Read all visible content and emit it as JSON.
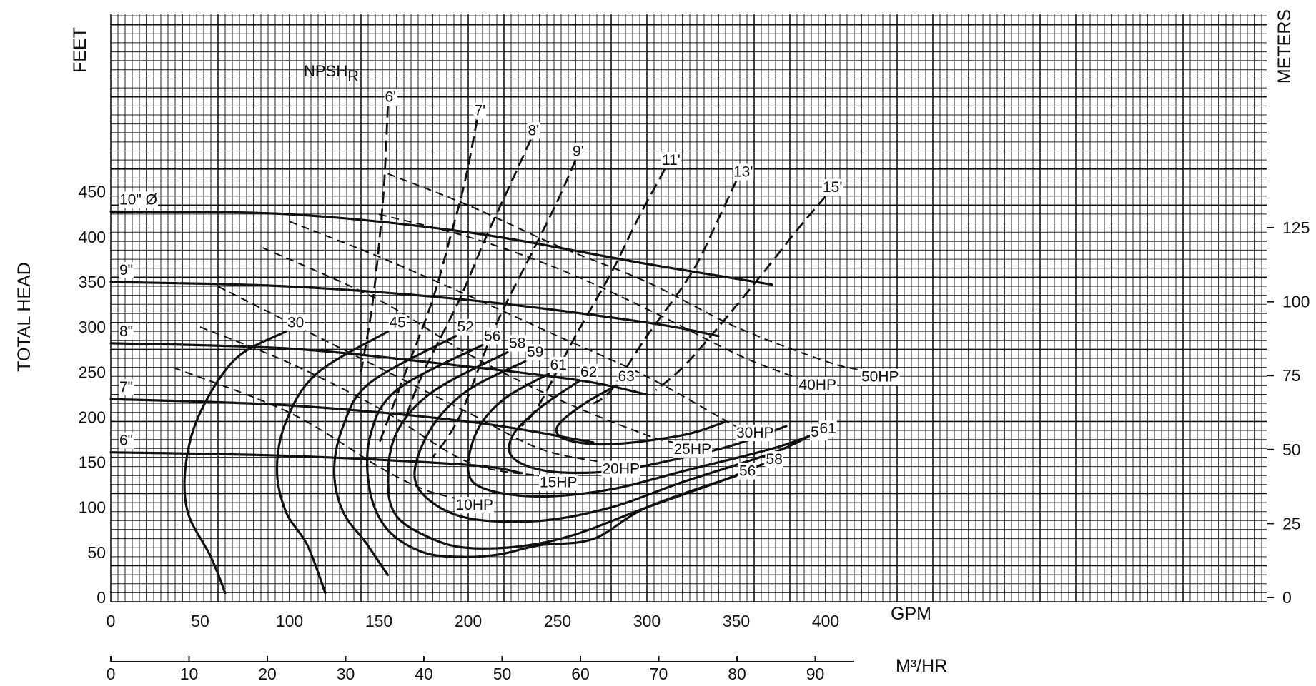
{
  "chart_data": {
    "type": "line",
    "title": "",
    "xlabel": "GPM",
    "x2label": "M³/HR",
    "ylabel": "TOTAL HEAD",
    "y_left_unit": "FEET",
    "y_right_unit": "METERS",
    "xlim": [
      0,
      640
    ],
    "ylim": [
      -5,
      650
    ],
    "x_ticks": [
      0,
      50,
      100,
      150,
      200,
      250,
      300,
      350,
      400
    ],
    "x2_ticks": [
      0,
      10,
      20,
      30,
      40,
      50,
      60,
      70,
      80,
      90
    ],
    "y_ticks": [
      0,
      50,
      100,
      150,
      200,
      250,
      300,
      350,
      400,
      450
    ],
    "y2_ticks": [
      0,
      25,
      50,
      75,
      100,
      125
    ],
    "grid": true,
    "npsh_label": "NPSH",
    "npsh_subscript": "R",
    "impeller_curves": [
      {
        "name": "10\" Ø",
        "points": [
          [
            0,
            428
          ],
          [
            100,
            425
          ],
          [
            200,
            405
          ],
          [
            300,
            370
          ],
          [
            370,
            347
          ]
        ]
      },
      {
        "name": "9\"",
        "points": [
          [
            0,
            350
          ],
          [
            100,
            345
          ],
          [
            200,
            330
          ],
          [
            300,
            305
          ],
          [
            340,
            290
          ]
        ]
      },
      {
        "name": "8\"",
        "points": [
          [
            0,
            282
          ],
          [
            100,
            276
          ],
          [
            200,
            256
          ],
          [
            265,
            240
          ],
          [
            300,
            225
          ]
        ]
      },
      {
        "name": "7\"",
        "points": [
          [
            0,
            220
          ],
          [
            100,
            213
          ],
          [
            200,
            195
          ],
          [
            270,
            172
          ]
        ]
      },
      {
        "name": "6\"",
        "points": [
          [
            0,
            161
          ],
          [
            100,
            157
          ],
          [
            200,
            147
          ],
          [
            230,
            138
          ]
        ]
      }
    ],
    "efficiency_curves": [
      {
        "name": "30",
        "points": [
          [
            98,
            295
          ],
          [
            70,
            265
          ],
          [
            50,
            205
          ],
          [
            42,
            148
          ],
          [
            43,
            95
          ],
          [
            56,
            45
          ],
          [
            64,
            5
          ]
        ]
      },
      {
        "name": "45",
        "points": [
          [
            155,
            295
          ],
          [
            115,
            248
          ],
          [
            98,
            195
          ],
          [
            93,
            142
          ],
          [
            98,
            95
          ],
          [
            110,
            58
          ],
          [
            120,
            5
          ]
        ]
      },
      {
        "name": "52",
        "points": [
          [
            193,
            290
          ],
          [
            145,
            238
          ],
          [
            130,
            190
          ],
          [
            125,
            140
          ],
          [
            130,
            95
          ],
          [
            143,
            60
          ],
          [
            155,
            25
          ]
        ]
      },
      {
        "name": "56",
        "points": [
          [
            208,
            280
          ],
          [
            160,
            230
          ],
          [
            145,
            178
          ],
          [
            145,
            118
          ],
          [
            155,
            75
          ],
          [
            175,
            50
          ],
          [
            198,
            45
          ],
          [
            218,
            48
          ],
          [
            240,
            58
          ],
          [
            270,
            65
          ],
          [
            300,
            100
          ],
          [
            350,
            135
          ]
        ]
      },
      {
        "name": "58",
        "points": [
          [
            222,
            272
          ],
          [
            180,
            228
          ],
          [
            160,
            183
          ],
          [
            155,
            130
          ],
          [
            160,
            90
          ],
          [
            180,
            65
          ],
          [
            200,
            55
          ],
          [
            230,
            57
          ],
          [
            260,
            70
          ],
          [
            300,
            100
          ],
          [
            340,
            128
          ],
          [
            365,
            148
          ]
        ]
      },
      {
        "name": "59",
        "points": [
          [
            232,
            262
          ],
          [
            200,
            230
          ],
          [
            180,
            190
          ],
          [
            170,
            140
          ],
          [
            177,
            110
          ],
          [
            200,
            88
          ],
          [
            240,
            85
          ],
          [
            280,
            100
          ],
          [
            320,
            128
          ],
          [
            370,
            160
          ],
          [
            390,
            178
          ]
        ]
      },
      {
        "name": "61",
        "points": [
          [
            245,
            248
          ],
          [
            220,
            220
          ],
          [
            205,
            185
          ],
          [
            200,
            140
          ],
          [
            210,
            120
          ],
          [
            240,
            112
          ],
          [
            280,
            120
          ],
          [
            320,
            140
          ],
          [
            370,
            165
          ],
          [
            395,
            182
          ]
        ]
      },
      {
        "name": "62",
        "points": [
          [
            262,
            240
          ],
          [
            240,
            210
          ],
          [
            225,
            180
          ],
          [
            225,
            155
          ],
          [
            245,
            140
          ],
          [
            280,
            140
          ],
          [
            320,
            155
          ],
          [
            350,
            170
          ],
          [
            378,
            190
          ]
        ]
      },
      {
        "name": "63",
        "points": [
          [
            283,
            235
          ],
          [
            265,
            215
          ],
          [
            250,
            190
          ],
          [
            255,
            175
          ],
          [
            280,
            170
          ],
          [
            320,
            180
          ],
          [
            344,
            195
          ]
        ]
      }
    ],
    "power_curves": [
      {
        "name": "10HP",
        "points": [
          [
            35,
            255
          ],
          [
            100,
            205
          ],
          [
            150,
            145
          ],
          [
            175,
            120
          ],
          [
            193,
            110
          ]
        ]
      },
      {
        "name": "15HP",
        "points": [
          [
            50,
            300
          ],
          [
            100,
            260
          ],
          [
            150,
            210
          ],
          [
            200,
            150
          ],
          [
            240,
            135
          ]
        ]
      },
      {
        "name": "20HP",
        "points": [
          [
            60,
            345
          ],
          [
            100,
            305
          ],
          [
            150,
            255
          ],
          [
            200,
            205
          ],
          [
            240,
            165
          ],
          [
            275,
            150
          ]
        ]
      },
      {
        "name": "25HP",
        "points": [
          [
            85,
            388
          ],
          [
            150,
            330
          ],
          [
            200,
            270
          ],
          [
            250,
            220
          ],
          [
            300,
            180
          ],
          [
            315,
            172
          ]
        ]
      },
      {
        "name": "30HP",
        "points": [
          [
            100,
            417
          ],
          [
            150,
            378
          ],
          [
            200,
            335
          ],
          [
            250,
            290
          ],
          [
            300,
            245
          ],
          [
            345,
            195
          ],
          [
            350,
            190
          ]
        ]
      },
      {
        "name": "40HP",
        "points": [
          [
            150,
            425
          ],
          [
            200,
            400
          ],
          [
            250,
            365
          ],
          [
            300,
            320
          ],
          [
            350,
            270
          ],
          [
            375,
            250
          ],
          [
            385,
            243
          ]
        ]
      },
      {
        "name": "50HP",
        "points": [
          [
            155,
            470
          ],
          [
            200,
            435
          ],
          [
            250,
            390
          ],
          [
            300,
            350
          ],
          [
            350,
            300
          ],
          [
            400,
            262
          ],
          [
            420,
            252
          ]
        ]
      }
    ],
    "npsh_curves": [
      {
        "name": "6'",
        "points": [
          [
            155,
            545
          ],
          [
            153,
            460
          ],
          [
            150,
            390
          ],
          [
            146,
            320
          ],
          [
            140,
            250
          ]
        ]
      },
      {
        "name": "7'",
        "points": [
          [
            205,
            530
          ],
          [
            198,
            460
          ],
          [
            190,
            400
          ],
          [
            180,
            330
          ],
          [
            165,
            250
          ],
          [
            150,
            170
          ]
        ]
      },
      {
        "name": "8'",
        "points": [
          [
            235,
            508
          ],
          [
            224,
            460
          ],
          [
            210,
            400
          ],
          [
            195,
            330
          ],
          [
            175,
            250
          ],
          [
            165,
            200
          ]
        ]
      },
      {
        "name": "9'",
        "points": [
          [
            260,
            485
          ],
          [
            250,
            440
          ],
          [
            235,
            380
          ],
          [
            215,
            300
          ],
          [
            195,
            200
          ],
          [
            180,
            155
          ]
        ]
      },
      {
        "name": "11'",
        "points": [
          [
            310,
            475
          ],
          [
            295,
            420
          ],
          [
            280,
            360
          ],
          [
            260,
            290
          ],
          [
            240,
            215
          ],
          [
            230,
            190
          ]
        ]
      },
      {
        "name": "13'",
        "points": [
          [
            350,
            462
          ],
          [
            340,
            420
          ],
          [
            325,
            360
          ],
          [
            300,
            290
          ],
          [
            280,
            230
          ],
          [
            270,
            215
          ]
        ]
      },
      {
        "name": "15'",
        "points": [
          [
            400,
            445
          ],
          [
            385,
            410
          ],
          [
            365,
            360
          ],
          [
            340,
            300
          ],
          [
            320,
            255
          ],
          [
            305,
            230
          ]
        ]
      }
    ]
  }
}
